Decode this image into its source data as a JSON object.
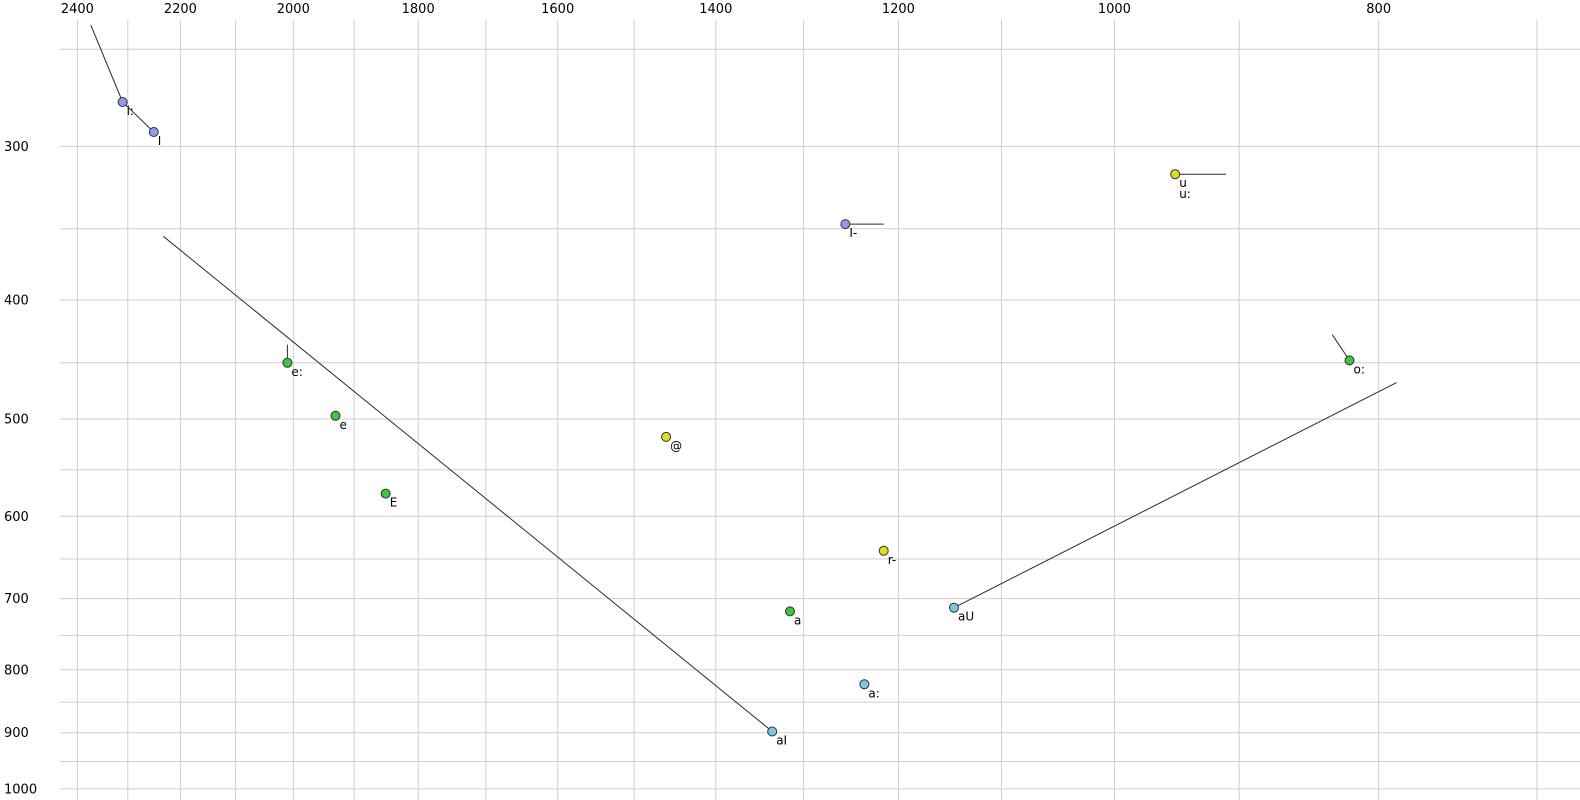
{
  "chart_data": {
    "type": "scatter",
    "title": "",
    "xlabel": "",
    "ylabel": "",
    "x_axis": {
      "scale": "log",
      "reversed": true,
      "left_edge_value": 2562,
      "right_edge_value": 675,
      "major_tick_values": [
        2400,
        2200,
        2000,
        1800,
        1600,
        1400,
        1200,
        1000,
        800
      ],
      "major_tick_labels": [
        "2400",
        "2200",
        "2000",
        "1800",
        "1600",
        "1400",
        "1200",
        "1000",
        "800"
      ],
      "minor_tick_step": 100,
      "minor_range": [
        700,
        2500
      ]
    },
    "y_axis": {
      "scale": "log",
      "top_edge_value": 228,
      "bottom_edge_value": 1021,
      "major_tick_values": [
        300,
        400,
        500,
        600,
        700,
        800,
        900,
        1000
      ],
      "major_tick_labels": [
        "300",
        "400",
        "500",
        "600",
        "700",
        "800",
        "900",
        "1000"
      ],
      "minor_tick_step": 50,
      "minor_range": [
        250,
        1000
      ]
    },
    "points": [
      {
        "label": "i:",
        "f2": 2310,
        "f1": 276,
        "color": "blue"
      },
      {
        "label": "I",
        "f2": 2250,
        "f1": 292,
        "color": "blue"
      },
      {
        "label": "u",
        "label2": "u:",
        "f2": 950,
        "f1": 316,
        "color": "yellow"
      },
      {
        "label": "I-",
        "f2": 1255,
        "f1": 347,
        "color": "blue"
      },
      {
        "label": "e:",
        "f2": 2010,
        "f1": 450,
        "color": "green"
      },
      {
        "label": "e",
        "f2": 1930,
        "f1": 497,
        "color": "green"
      },
      {
        "label": "@",
        "f2": 1460,
        "f1": 517,
        "color": "yellow"
      },
      {
        "label": "E",
        "f2": 1850,
        "f1": 575,
        "color": "green"
      },
      {
        "label": "r-",
        "f2": 1215,
        "f1": 640,
        "color": "yellow"
      },
      {
        "label": "a",
        "f2": 1315,
        "f1": 717,
        "color": "green"
      },
      {
        "label": "aU",
        "f2": 1145,
        "f1": 712,
        "color": "cyan"
      },
      {
        "label": "o:",
        "f2": 820,
        "f1": 448,
        "color": "green"
      },
      {
        "label": "a:",
        "f2": 1235,
        "f1": 822,
        "color": "cyan"
      },
      {
        "label": "aI",
        "f2": 1335,
        "f1": 898,
        "color": "cyan"
      }
    ],
    "segments": [
      {
        "name": "i-onset",
        "points": [
          [
            2373,
            239
          ],
          [
            2310,
            276
          ]
        ]
      },
      {
        "name": "i-to-I",
        "points": [
          [
            2310,
            276
          ],
          [
            2250,
            292
          ]
        ]
      },
      {
        "name": "u-tail",
        "points": [
          [
            950,
            316
          ],
          [
            910,
            316
          ]
        ]
      },
      {
        "name": "I-bar-tail",
        "points": [
          [
            1255,
            347
          ],
          [
            1215,
            347
          ]
        ]
      },
      {
        "name": "aI-trajectory",
        "points": [
          [
            2232,
            355
          ],
          [
            1335,
            898
          ]
        ]
      },
      {
        "name": "aU-trajectory",
        "points": [
          [
            1145,
            712
          ],
          [
            788,
            467
          ]
        ]
      },
      {
        "name": "o-onset",
        "points": [
          [
            832,
            427
          ],
          [
            820,
            448
          ]
        ]
      },
      {
        "name": "e-long-tick",
        "points": [
          [
            2010,
            435
          ],
          [
            2010,
            450
          ]
        ]
      }
    ],
    "colors": {
      "blue": "#8f9bee",
      "green": "#3fc43f",
      "yellow": "#dede1f",
      "cyan": "#7cc8e4",
      "outline": "#303030",
      "line": "#2a2a2a",
      "grid": "#cfcfcf",
      "text": "#000000",
      "background": "#ffffff"
    }
  }
}
